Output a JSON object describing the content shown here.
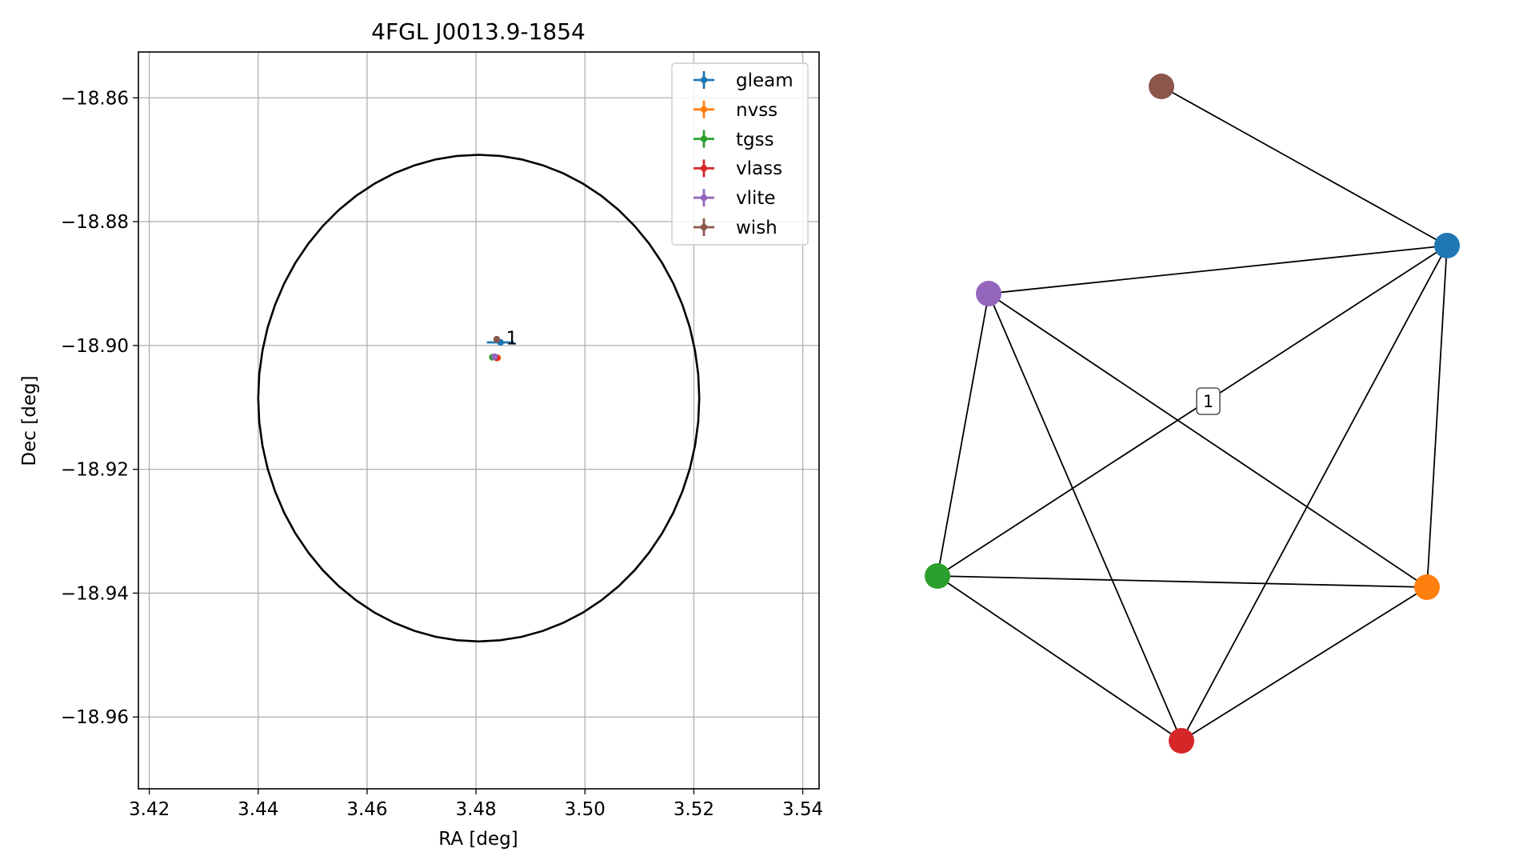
{
  "chart_data": [
    {
      "type": "scatter",
      "title": "4FGL J0013.9-1854",
      "xlabel": "RA [deg]",
      "ylabel": "Dec [deg]",
      "xlim": [
        3.418,
        3.543
      ],
      "ylim": [
        -18.9716,
        -18.8526
      ],
      "grid": true,
      "legend_position": "top-right",
      "x_ticks": [
        3.42,
        3.44,
        3.46,
        3.48,
        3.5,
        3.52,
        3.54
      ],
      "x_tick_labels": [
        "3.42",
        "3.44",
        "3.46",
        "3.48",
        "3.50",
        "3.52",
        "3.54"
      ],
      "y_ticks": [
        -18.86,
        -18.88,
        -18.9,
        -18.92,
        -18.94,
        -18.96
      ],
      "y_tick_labels": [
        "−18.86",
        "−18.88",
        "−18.90",
        "−18.92",
        "−18.94",
        "−18.96"
      ],
      "ellipse": {
        "center": [
          3.4805,
          -18.9085
        ],
        "semi_axis_ra": 0.0405,
        "semi_axis_dec": 0.0393,
        "color": "#000000"
      },
      "series": [
        {
          "name": "gleam",
          "color": "#1f77b4",
          "x": 3.4845,
          "y": -18.8995,
          "xerr": 0.0025,
          "yerr": 0.0005
        },
        {
          "name": "nvss",
          "color": "#ff7f0e",
          "x": 3.484,
          "y": -18.902,
          "xerr": 0.0003,
          "yerr": 0.0002
        },
        {
          "name": "tgss",
          "color": "#2ca02c",
          "x": 3.483,
          "y": -18.9019,
          "xerr": 0.0004,
          "yerr": 0.0003
        },
        {
          "name": "vlass",
          "color": "#d62728",
          "x": 3.4838,
          "y": -18.902,
          "xerr": 0.0001,
          "yerr": 0.0001
        },
        {
          "name": "vlite",
          "color": "#9467bd",
          "x": 3.4834,
          "y": -18.9018,
          "xerr": 0.0003,
          "yerr": 0.0002
        },
        {
          "name": "wish",
          "color": "#8c564b",
          "x": 3.4838,
          "y": -18.899,
          "xerr": 0.0003,
          "yerr": 0.0003
        }
      ],
      "annotations": [
        {
          "text": "1",
          "x": 3.4855,
          "y": -18.8988
        }
      ]
    },
    {
      "type": "network",
      "nodes": [
        {
          "id": "gleam",
          "color": "#1f77b4"
        },
        {
          "id": "nvss",
          "color": "#ff7f0e"
        },
        {
          "id": "tgss",
          "color": "#2ca02c"
        },
        {
          "id": "vlass",
          "color": "#d62728"
        },
        {
          "id": "vlite",
          "color": "#9467bd"
        },
        {
          "id": "wish",
          "color": "#8c564b"
        }
      ],
      "edges": [
        [
          "wish",
          "gleam"
        ],
        [
          "gleam",
          "vlite"
        ],
        [
          "gleam",
          "tgss"
        ],
        [
          "gleam",
          "vlass"
        ],
        [
          "gleam",
          "nvss"
        ],
        [
          "vlite",
          "tgss"
        ],
        [
          "vlite",
          "vlass"
        ],
        [
          "vlite",
          "nvss"
        ],
        [
          "tgss",
          "nvss"
        ],
        [
          "tgss",
          "vlass"
        ],
        [
          "vlass",
          "nvss"
        ]
      ],
      "labels": [
        {
          "text": "1"
        }
      ]
    }
  ]
}
